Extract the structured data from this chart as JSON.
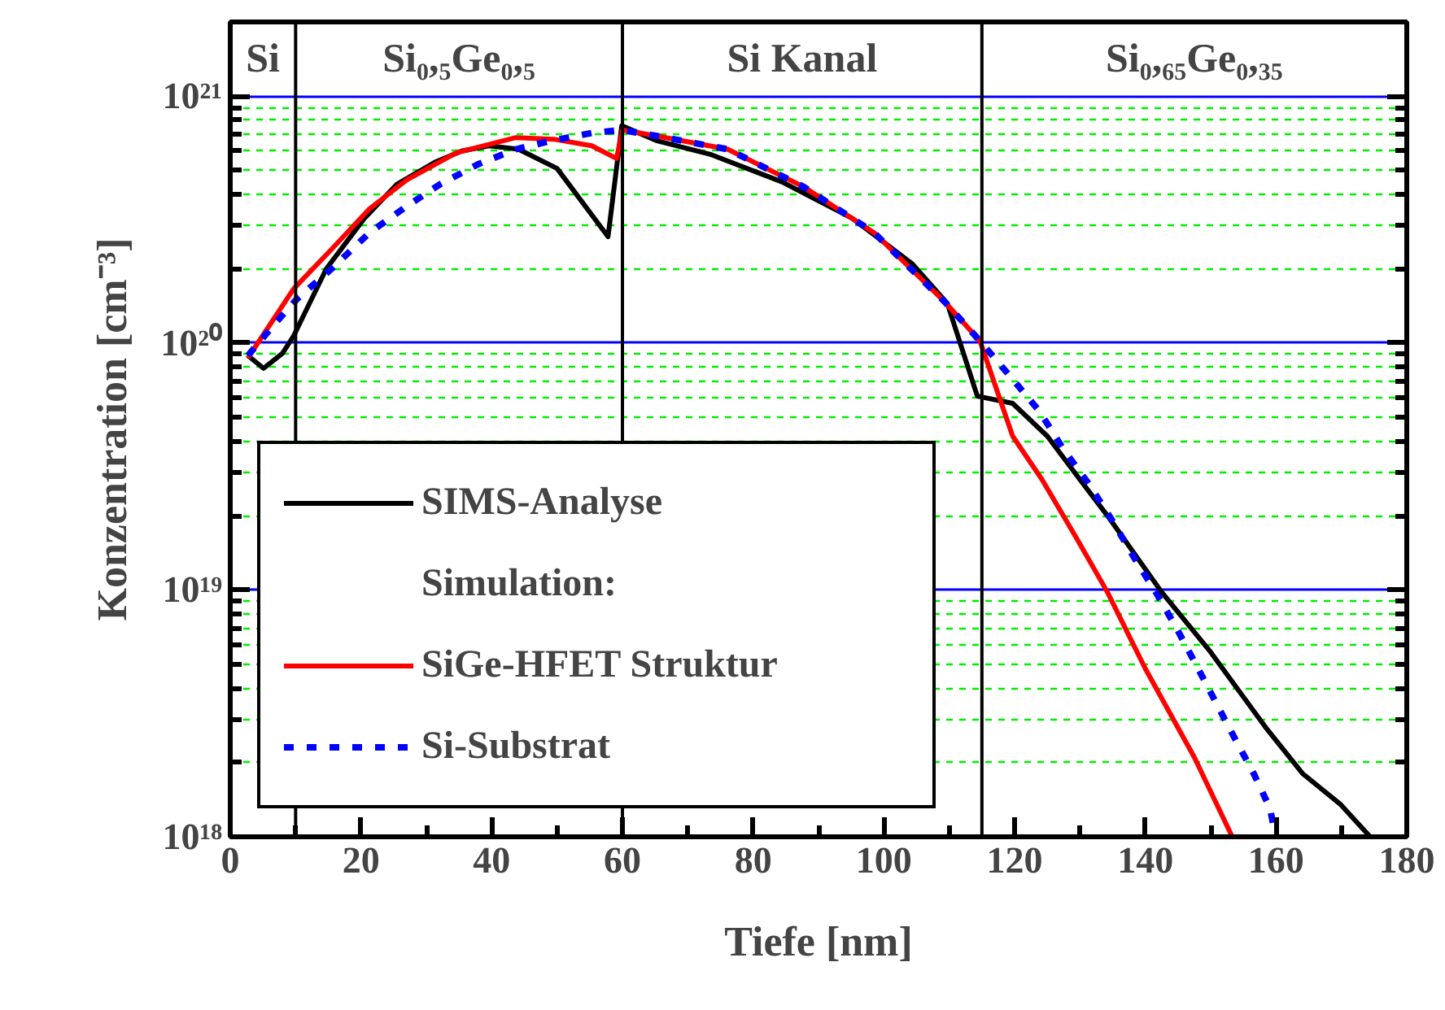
{
  "chart_data": {
    "type": "line",
    "xlabel": "Tiefe [nm]",
    "ylabel": "Konzentration [cm⁻³]",
    "xlim": [
      0,
      180
    ],
    "xticks": [
      0,
      {
        "value": 10,
        "label": null
      },
      20,
      {
        "value": 30,
        "label": null
      },
      40,
      {
        "value": 50,
        "label": null
      },
      60,
      {
        "value": 70,
        "label": null
      },
      80,
      {
        "value": 90,
        "label": null
      },
      100,
      {
        "value": 110,
        "label": null
      },
      120,
      {
        "value": 130,
        "label": null
      },
      140,
      {
        "value": 150,
        "label": null
      },
      160,
      {
        "value": 170,
        "label": null
      },
      180
    ],
    "ylim": [
      1e+18,
      2e+21
    ],
    "log": "y",
    "yticks": [
      {
        "value": 1e+18,
        "label": "10¹⁸"
      },
      {
        "value": 2e+18,
        "label": null
      },
      {
        "value": 3e+18,
        "label": null
      },
      {
        "value": 4e+18,
        "label": null
      },
      {
        "value": 5e+18,
        "label": null
      },
      {
        "value": 6e+18,
        "label": null
      },
      {
        "value": 7e+18,
        "label": null
      },
      {
        "value": 8e+18,
        "label": null
      },
      {
        "value": 9e+18,
        "label": null
      },
      {
        "value": 1e+19,
        "label": "10¹⁹"
      },
      {
        "value": 2e+19,
        "label": null
      },
      {
        "value": 3e+19,
        "label": null
      },
      {
        "value": 4e+19,
        "label": null
      },
      {
        "value": 5e+19,
        "label": null
      },
      {
        "value": 6e+19,
        "label": null
      },
      {
        "value": 7e+19,
        "label": null
      },
      {
        "value": 8e+19,
        "label": null
      },
      {
        "value": 9e+19,
        "label": null
      },
      {
        "value": 1e+20,
        "label": "10²⁰"
      },
      {
        "value": 2e+20,
        "label": null
      },
      {
        "value": 3e+20,
        "label": null
      },
      {
        "value": 4e+20,
        "label": null
      },
      {
        "value": 5e+20,
        "label": null
      },
      {
        "value": 6e+20,
        "label": null
      },
      {
        "value": 7e+20,
        "label": null
      },
      {
        "value": 8e+20,
        "label": null
      },
      {
        "value": 9e+20,
        "label": null
      },
      {
        "value": 1e+21,
        "label": "10²¹"
      }
    ],
    "grid": "y",
    "legend": "bottom left",
    "ref_lines": [
      {
        "axis": "x",
        "value": 10,
        "color": "#000000"
      },
      {
        "axis": "x",
        "value": 60,
        "color": "#000000"
      },
      {
        "axis": "x",
        "value": 115,
        "color": "#000000"
      }
    ],
    "annotations": [
      "Si",
      "Si₀,₅Ge₀,₅",
      "Si Kanal",
      "Si₀,₆₅Ge₀,₃₅",
      "Simulation:"
    ],
    "series": [
      {
        "name": "SIMS-Analyse",
        "color": "#000000",
        "line_style": "solid",
        "x": [
          2.7,
          5.1,
          8.0,
          9.7,
          14.7,
          20.5,
          25.5,
          31.3,
          35.4,
          39.6,
          44.1,
          50.0,
          57.8,
          59.9,
          65.3,
          73.6,
          84.4,
          95.2,
          104.3,
          109.7,
          114.3,
          119.7,
          125.0,
          130.0,
          134.2,
          142.5,
          150.0,
          158.3,
          164.1,
          169.9,
          174.4
        ],
        "values": [
          8.9e+19,
          7.9e+19,
          9.1e+19,
          1.07e+20,
          2e+20,
          3.2e+20,
          4.4e+20,
          5.4e+20,
          6e+20,
          6.3e+20,
          6.1e+20,
          5.1e+20,
          2.7e+20,
          7.6e+20,
          6.6e+20,
          5.8e+20,
          4.5e+20,
          3.2e+20,
          2.1e+20,
          1.45e+20,
          6.1e+19,
          5.7e+19,
          4.2e+19,
          2.8e+19,
          2e+19,
          9.8e+18,
          5.6e+18,
          2.8e+18,
          1.8e+18,
          1.35e+18,
          1e+18
        ]
      },
      {
        "name": "SiGe-HFET Struktur",
        "color": "#ff0000",
        "line_style": "solid",
        "x": [
          2.7,
          9.7,
          15.5,
          21.3,
          27.1,
          34.6,
          43.7,
          49.5,
          55.3,
          59.1,
          60.0,
          65.3,
          76.1,
          87.7,
          98.5,
          109.3,
          114.7,
          119.7,
          124.2,
          129.6,
          134.2,
          140.0,
          147.5,
          153.3
        ],
        "values": [
          8.7e+19,
          1.66e+20,
          2.4e+20,
          3.5e+20,
          4.6e+20,
          5.9e+20,
          6.8e+20,
          6.7e+20,
          6.3e+20,
          5.6e+20,
          7.3e+20,
          6.9e+20,
          6.1e+20,
          4.3e+20,
          2.8e+20,
          1.47e+20,
          1.02e+20,
          4.2e+19,
          2.8e+19,
          1.6e+19,
          9.8e+18,
          4.8e+18,
          2.1e+18,
          1e+18
        ]
      },
      {
        "name": "Si-Substrat",
        "color": "#0000ff",
        "line_style": "dotted",
        "x": [
          2.7,
          7.2,
          10.1,
          15.5,
          21.3,
          27.1,
          32.1,
          37.9,
          43.7,
          49.1,
          55.3,
          59.9,
          65.3,
          76.1,
          87.7,
          98.5,
          109.3,
          114.7,
          119.2,
          123.8,
          127.5,
          131.3,
          135.0,
          138.3,
          141.6,
          144.9,
          147.9,
          150.8,
          153.7,
          156.6,
          159.1,
          159.7
        ],
        "values": [
          8.9e+19,
          1.23e+20,
          1.5e+20,
          2e+20,
          2.8e+20,
          3.6e+20,
          4.4e+20,
          5.3e+20,
          6.1e+20,
          6.6e+20,
          7.1e+20,
          7.3e+20,
          6.9e+20,
          6.1e+20,
          4.3e+20,
          2.8e+20,
          1.47e+20,
          1.02e+20,
          7.4e+19,
          5.3e+19,
          3.7e+19,
          2.7e+19,
          1.9e+19,
          1.35e+19,
          9.8e+18,
          6.9e+18,
          4.9e+18,
          3.5e+18,
          2.5e+18,
          1.8e+18,
          1.3e+18,
          1.07e+18
        ]
      }
    ]
  }
}
